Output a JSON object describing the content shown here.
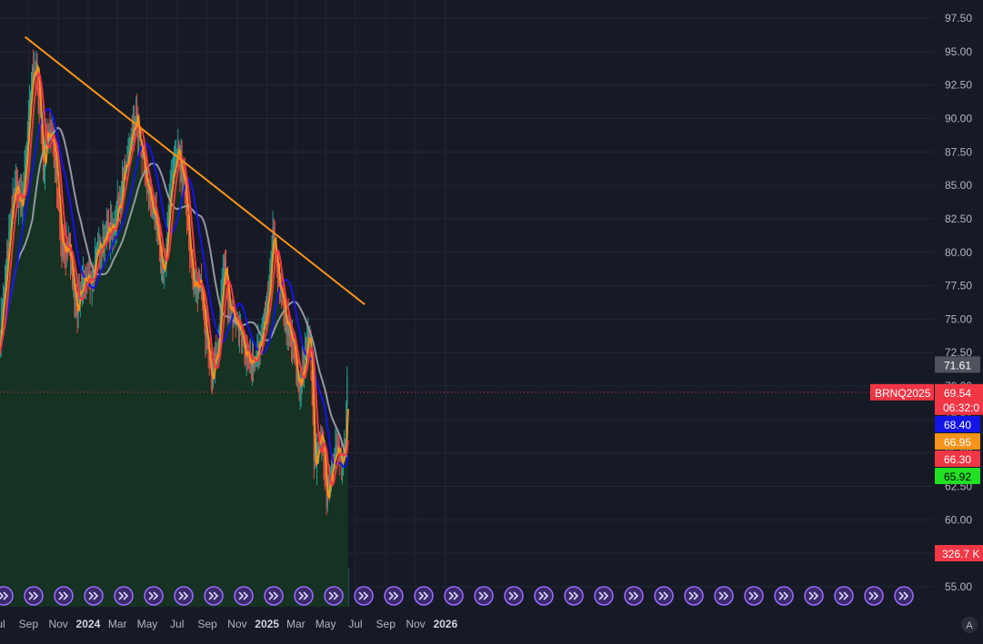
{
  "chart_data": {
    "type": "candlestick",
    "symbol": "BRNQ2025",
    "last_price": "69.54",
    "countdown": "06:32:0",
    "y_axis": {
      "range": [
        53.5,
        98.5
      ],
      "ticks": [
        "97.50",
        "95.00",
        "92.50",
        "90.00",
        "87.50",
        "85.00",
        "82.50",
        "80.00",
        "77.50",
        "75.00",
        "72.50",
        "70.00",
        "67.50",
        "65.00",
        "62.50",
        "60.00",
        "57.50",
        "55.00"
      ]
    },
    "x_axis": {
      "tick_labels": [
        "Jul",
        "Sep",
        "Nov",
        "2024",
        "Mar",
        "May",
        "Jul",
        "Sep",
        "Nov",
        "2025",
        "Mar",
        "May",
        "Jul",
        "Sep",
        "Nov",
        "2026"
      ]
    },
    "price_path": [
      [
        "2023-07-03",
        72.5
      ],
      [
        "2023-07-20",
        79
      ],
      [
        "2023-08-05",
        85
      ],
      [
        "2023-08-20",
        83.5
      ],
      [
        "2023-09-10",
        93
      ],
      [
        "2023-09-20",
        94
      ],
      [
        "2023-10-05",
        85.5
      ],
      [
        "2023-10-10",
        89.5
      ],
      [
        "2023-10-25",
        88
      ],
      [
        "2023-11-10",
        80.5
      ],
      [
        "2023-11-25",
        80
      ],
      [
        "2023-12-10",
        75.5
      ],
      [
        "2023-12-25",
        78
      ],
      [
        "2024-01-10",
        78
      ],
      [
        "2024-01-25",
        80.5
      ],
      [
        "2024-02-10",
        81.5
      ],
      [
        "2024-02-25",
        82
      ],
      [
        "2024-03-15",
        85.5
      ],
      [
        "2024-04-10",
        90
      ],
      [
        "2024-04-20",
        87.5
      ],
      [
        "2024-05-05",
        84.5
      ],
      [
        "2024-05-20",
        82.5
      ],
      [
        "2024-06-04",
        78
      ],
      [
        "2024-06-20",
        85
      ],
      [
        "2024-07-05",
        87.5
      ],
      [
        "2024-07-20",
        84.5
      ],
      [
        "2024-08-05",
        77
      ],
      [
        "2024-08-20",
        78
      ],
      [
        "2024-09-10",
        70.5
      ],
      [
        "2024-09-25",
        73
      ],
      [
        "2024-10-07",
        79
      ],
      [
        "2024-10-20",
        75.5
      ],
      [
        "2024-11-05",
        74.5
      ],
      [
        "2024-11-20",
        72.5
      ],
      [
        "2024-12-05",
        72
      ],
      [
        "2024-12-20",
        73
      ],
      [
        "2025-01-05",
        76.5
      ],
      [
        "2025-01-15",
        81.5
      ],
      [
        "2025-01-25",
        78
      ],
      [
        "2025-02-10",
        75
      ],
      [
        "2025-02-25",
        73.5
      ],
      [
        "2025-03-05",
        70
      ],
      [
        "2025-03-15",
        71
      ],
      [
        "2025-03-31",
        74
      ],
      [
        "2025-04-10",
        64
      ],
      [
        "2025-04-25",
        66.5
      ],
      [
        "2025-05-05",
        61.5
      ],
      [
        "2025-05-20",
        65
      ],
      [
        "2025-06-05",
        64.8
      ],
      [
        "2025-06-12",
        66
      ],
      [
        "2025-06-16",
        70.5
      ]
    ],
    "trendline": {
      "start": [
        "2023-08-25",
        96.1
      ],
      "end": [
        "2025-07-20",
        76.1
      ],
      "color": "#f7931a"
    },
    "moving_averages": [
      {
        "value": "71.61",
        "color": "#9598a1",
        "smoothing": 70
      },
      {
        "value": "68.40",
        "color": "#1414e6",
        "smoothing": 40
      },
      {
        "value": "66.95",
        "color": "#f7931a",
        "smoothing": 4
      },
      {
        "value": "66.30",
        "color": "#f23645",
        "smoothing": 14
      },
      {
        "value": "65.92",
        "color": "#22e022",
        "smoothing": 0
      }
    ],
    "volume_label": "326.7 K",
    "event_markers_count": 31
  },
  "colors": {
    "background": "#161a25",
    "grid": "#232735",
    "up": "#26a69a",
    "down": "#ef5350",
    "area": "#153222",
    "price_line": "#f23645",
    "axis_text": "#b2b5be"
  },
  "icons": {
    "event_marker": "double-chevron-right-icon",
    "auto_scale": "auto-scale-icon"
  },
  "auto_scale_label": "A"
}
